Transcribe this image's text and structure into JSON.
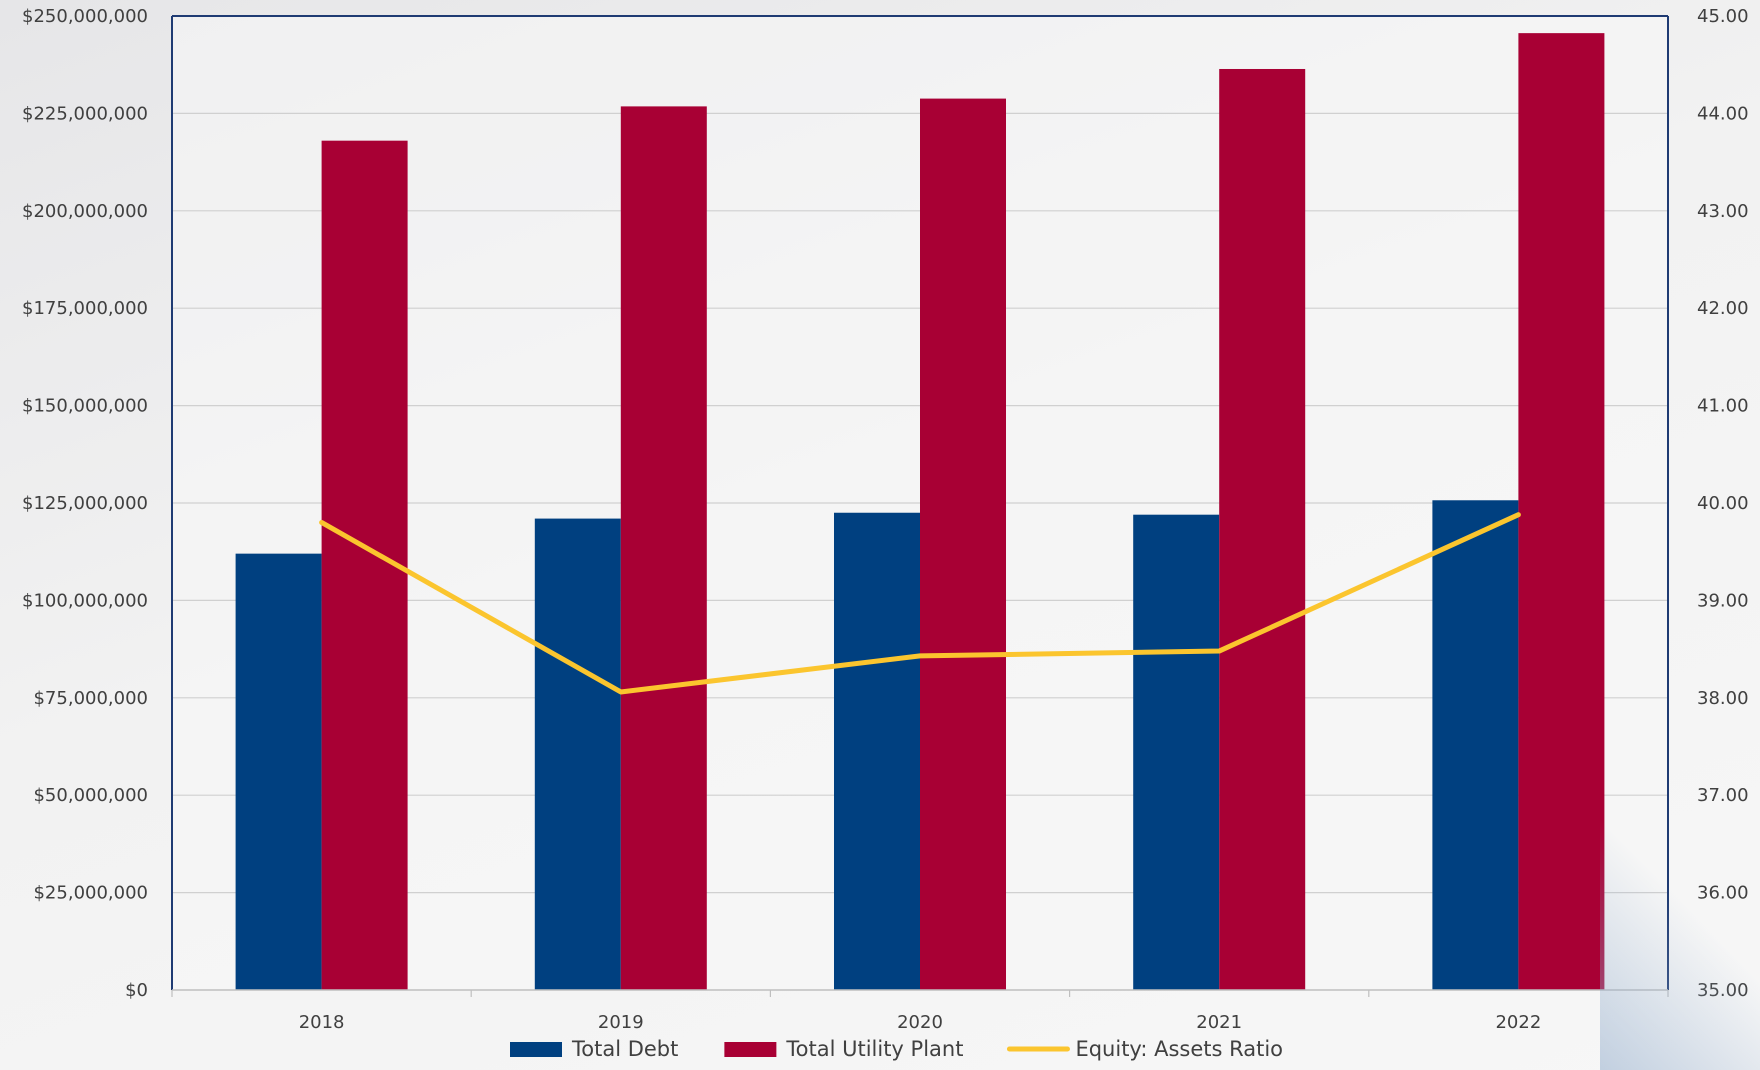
{
  "chart_data": {
    "type": "bar",
    "title": "",
    "xlabel": "",
    "ylabel": "",
    "y2label": "",
    "categories": [
      "2018",
      "2019",
      "2020",
      "2021",
      "2022"
    ],
    "ylim": [
      0,
      250000000
    ],
    "y2lim": [
      35,
      45
    ],
    "y_ticks": [
      "$0",
      "$25,000,000",
      "$50,000,000",
      "$75,000,000",
      "$100,000,000",
      "$125,000,000",
      "$150,000,000",
      "$175,000,000",
      "$200,000,000",
      "$225,000,000",
      "$250,000,000"
    ],
    "y2_ticks": [
      "35.00",
      "36.00",
      "37.00",
      "38.00",
      "39.00",
      "40.00",
      "41.00",
      "42.00",
      "43.00",
      "44.00",
      "45.00"
    ],
    "grid": true,
    "legend_position": "bottom",
    "series": [
      {
        "name": "Total Debt",
        "type": "bar",
        "axis": "left",
        "color": "#004080",
        "values": [
          112000000,
          121000000,
          122500000,
          122000000,
          125700000
        ]
      },
      {
        "name": "Total Utility Plant",
        "type": "bar",
        "axis": "left",
        "color": "#a80034",
        "values": [
          218000000,
          226800000,
          228800000,
          236400000,
          245600000
        ]
      },
      {
        "name": "Equity: Assets Ratio",
        "type": "line",
        "axis": "right",
        "color": "#fbc52e",
        "values": [
          39.8,
          38.06,
          38.43,
          38.48,
          39.88
        ]
      }
    ]
  }
}
